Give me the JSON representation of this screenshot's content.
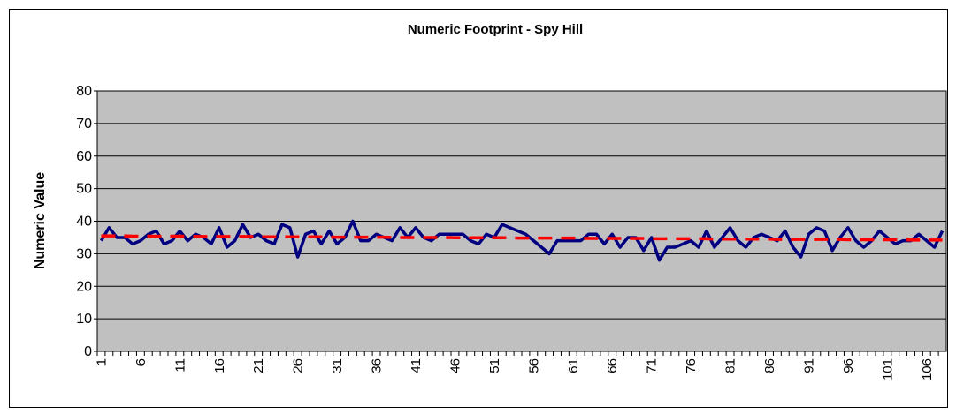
{
  "chart_data": {
    "type": "line",
    "title": "Numeric Footprint - Spy Hill",
    "y_label": "Numeric Value",
    "categories": [
      1,
      null,
      null,
      null,
      null,
      6,
      null,
      null,
      null,
      null,
      11,
      null,
      null,
      null,
      null,
      16,
      null,
      null,
      null,
      null,
      21,
      null,
      null,
      null,
      null,
      26,
      null,
      null,
      null,
      null,
      31,
      null,
      null,
      null,
      null,
      36,
      null,
      null,
      null,
      null,
      41,
      null,
      null,
      null,
      null,
      46,
      null,
      null,
      null,
      null,
      51,
      null,
      null,
      null,
      null,
      56,
      null,
      null,
      null,
      null,
      61,
      null,
      null,
      null,
      null,
      66,
      null,
      null,
      null,
      null,
      71,
      null,
      null,
      null,
      null,
      76,
      null,
      null,
      null,
      null,
      81,
      null,
      null,
      null,
      null,
      86,
      null,
      null,
      null,
      null,
      91,
      null,
      null,
      null,
      null,
      96,
      null,
      null,
      null,
      null,
      101,
      null,
      null,
      null,
      null,
      106,
      null,
      null
    ],
    "series": [
      {
        "color": "#000080",
        "style": "solid",
        "values": [
          34,
          38,
          35,
          35,
          33,
          34,
          36,
          37,
          33,
          34,
          37,
          34,
          36,
          35,
          33,
          38,
          32,
          34,
          39,
          35,
          36,
          34,
          33,
          39,
          38,
          29,
          36,
          37,
          33,
          37,
          33,
          35,
          40,
          34,
          34,
          36,
          35,
          34,
          38,
          35,
          38,
          35,
          34,
          36,
          36,
          36,
          36,
          34,
          33,
          36,
          35,
          39,
          38,
          37,
          36,
          34,
          32,
          30,
          34,
          34,
          34,
          34,
          36,
          36,
          33,
          36,
          32,
          35,
          35,
          31,
          35,
          28,
          32,
          32,
          33,
          34,
          32,
          37,
          32,
          35,
          38,
          34,
          32,
          35,
          36,
          35,
          34,
          37,
          32,
          29,
          36,
          38,
          37,
          31,
          35,
          38,
          34,
          32,
          34,
          37,
          35,
          33,
          34,
          34,
          36,
          34,
          32,
          37
        ]
      },
      {
        "color": "#ff0000",
        "style": "dashed",
        "values": [
          35.5,
          35.5,
          35.5,
          35.5,
          35.4,
          35.4,
          35.4,
          35.4,
          35.4,
          35.4,
          35.4,
          35.4,
          35.3,
          35.3,
          35.3,
          35.3,
          35.3,
          35.3,
          35.3,
          35.3,
          35.2,
          35.2,
          35.2,
          35.2,
          35.2,
          35.2,
          35.2,
          35.2,
          35.2,
          35.1,
          35.1,
          35.1,
          35.1,
          35.1,
          35.1,
          35.1,
          35.1,
          35.0,
          35.0,
          35.0,
          35.0,
          35.0,
          35.0,
          35.0,
          35.0,
          34.9,
          34.9,
          34.9,
          34.9,
          34.9,
          34.9,
          34.9,
          34.9,
          34.8,
          34.8,
          34.8,
          34.8,
          34.8,
          34.8,
          34.8,
          34.8,
          34.8,
          34.7,
          34.7,
          34.7,
          34.7,
          34.7,
          34.7,
          34.7,
          34.7,
          34.6,
          34.6,
          34.6,
          34.6,
          34.6,
          34.6,
          34.6,
          34.6,
          34.5,
          34.5,
          34.5,
          34.5,
          34.5,
          34.5,
          34.5,
          34.5,
          34.4,
          34.4,
          34.4,
          34.4,
          34.4,
          34.4,
          34.4,
          34.4,
          34.4,
          34.3,
          34.3,
          34.3,
          34.3,
          34.3,
          34.3,
          34.3,
          34.3,
          34.2,
          34.2,
          34.2,
          34.2,
          34.2
        ]
      }
    ],
    "ylim": [
      0,
      80
    ],
    "yticks": [
      0,
      10,
      20,
      30,
      40,
      50,
      60,
      70,
      80
    ],
    "grid": true,
    "plot_color": "#c0c0c0"
  }
}
